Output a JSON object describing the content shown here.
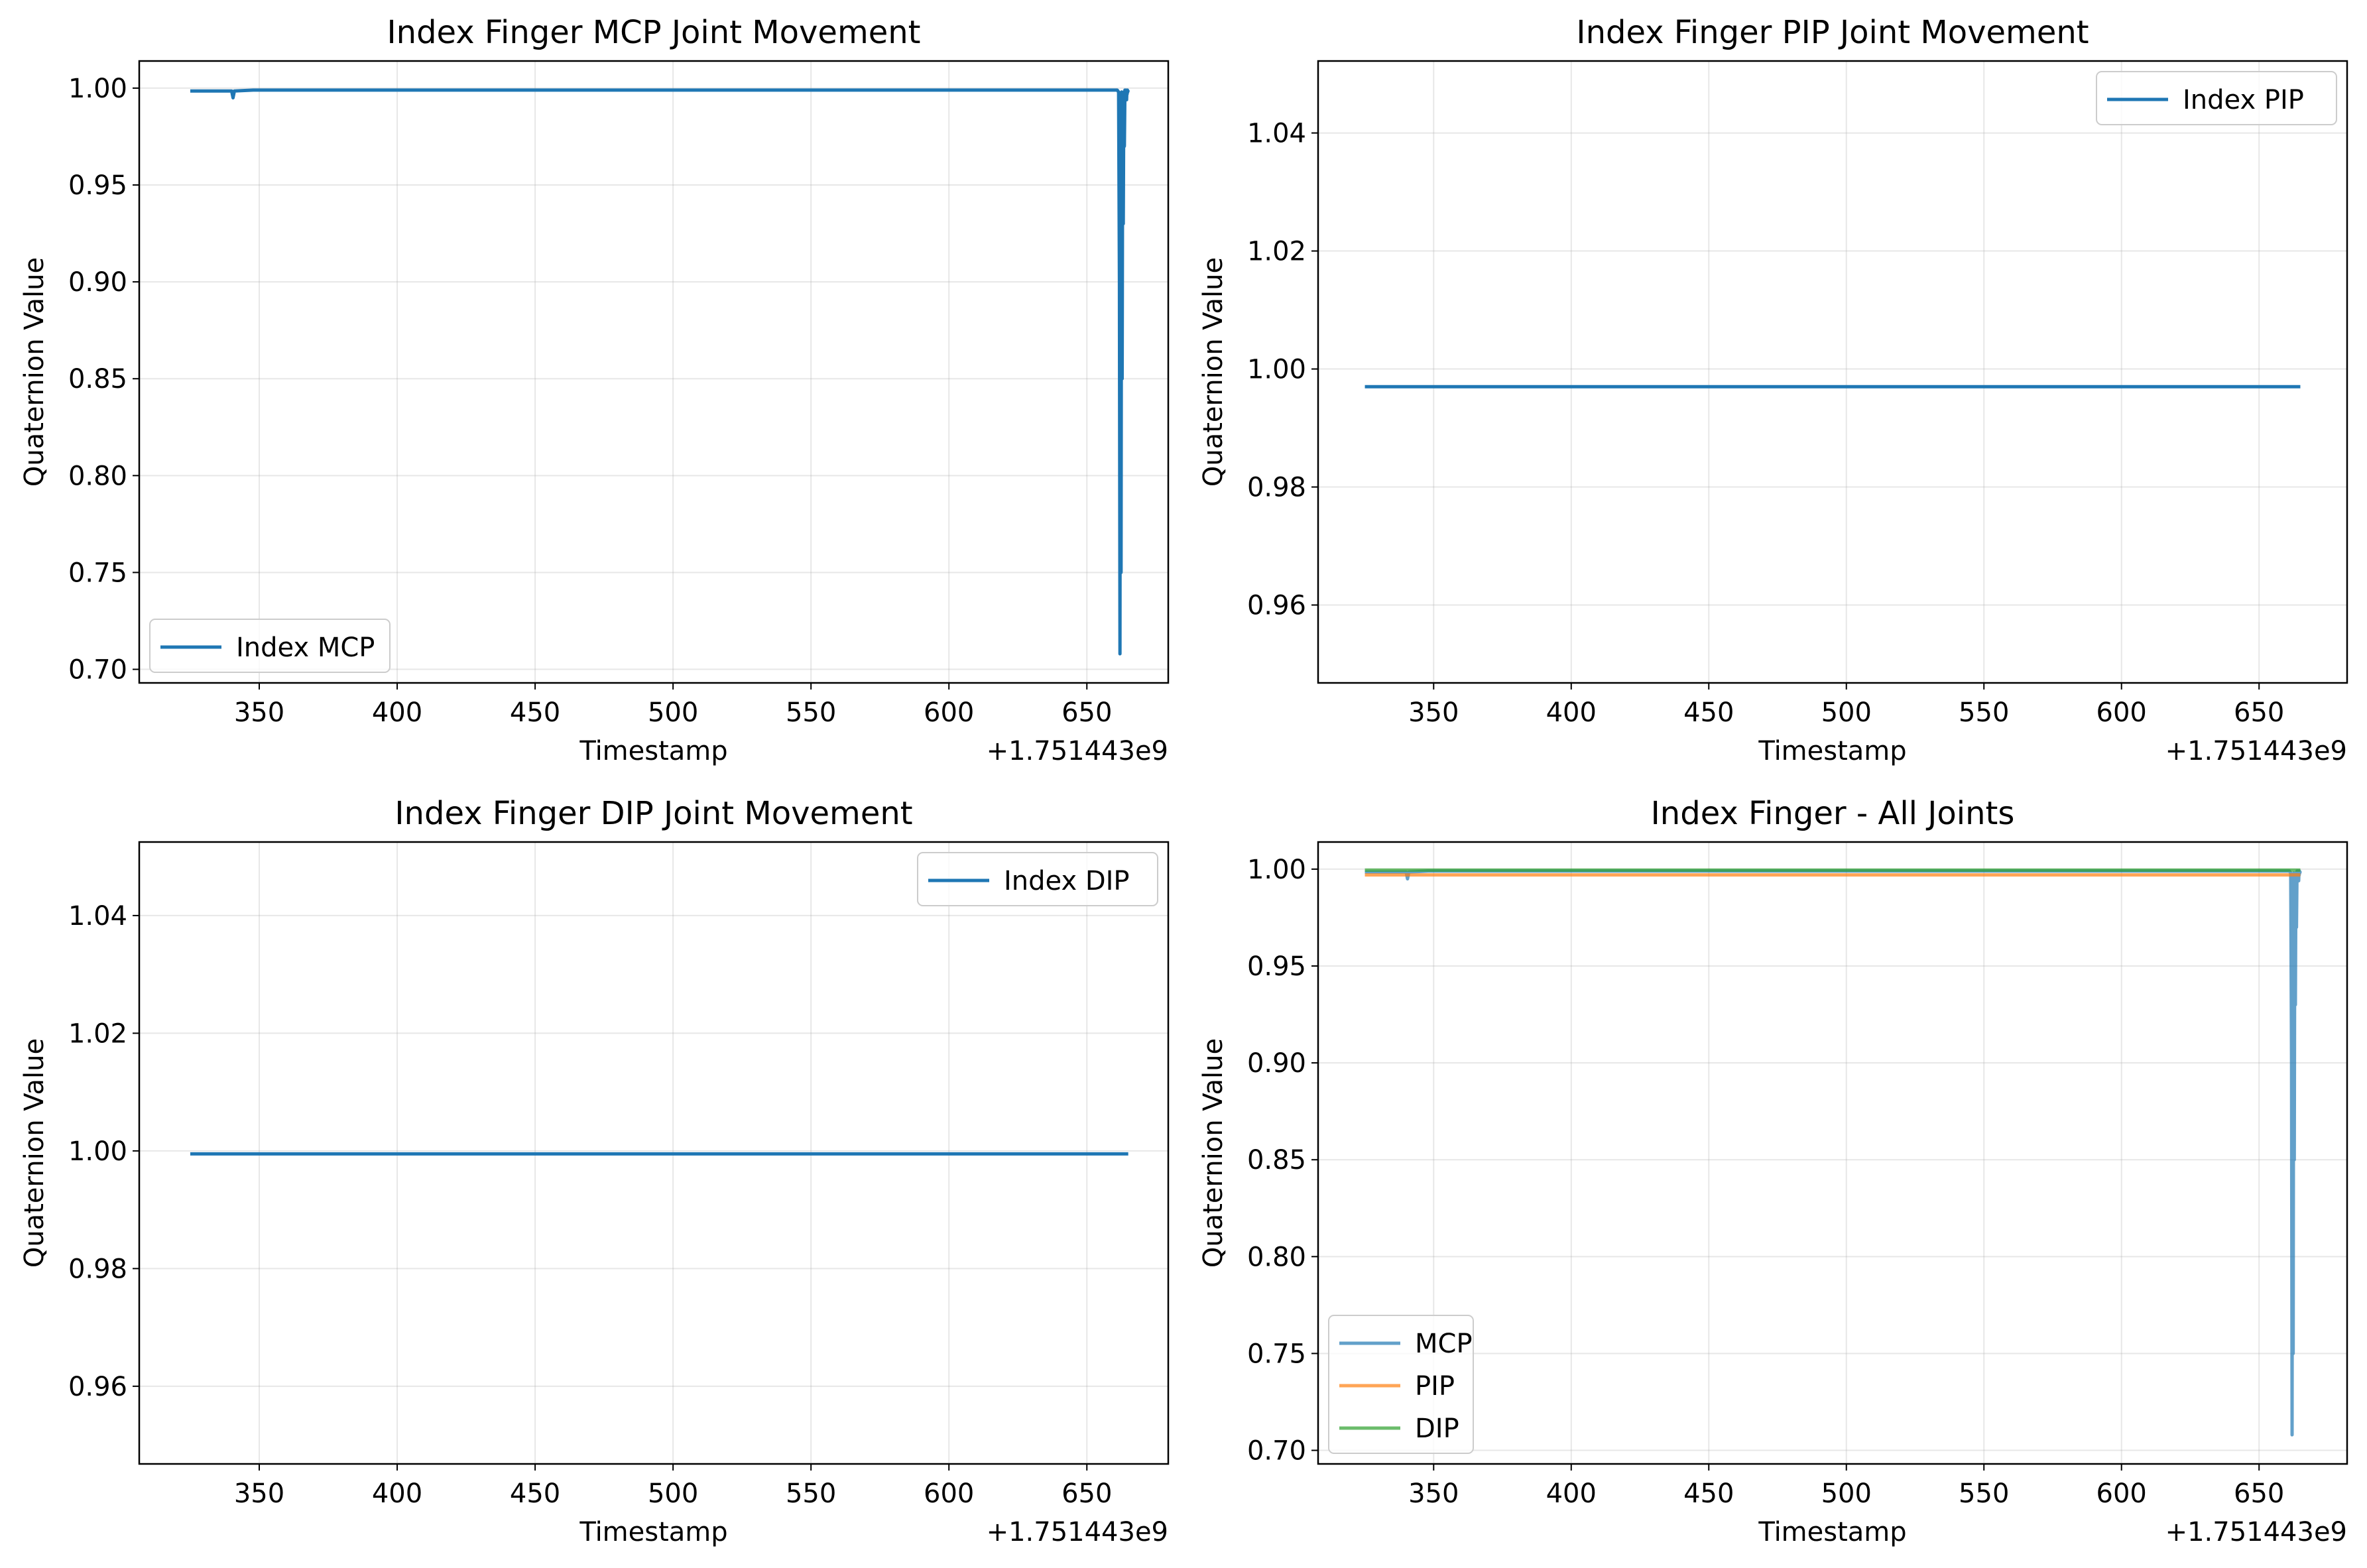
{
  "figure": {
    "background": "#ffffff"
  },
  "chart_data": [
    {
      "type": "line",
      "title": "Index Finger MCP Joint Movement",
      "xlabel": "Timestamp",
      "ylabel": "Quaternion Value",
      "x_offset_label": "+1.751443e9",
      "xlim": [
        306.5,
        679.5
      ],
      "ylim": [
        0.693,
        1.014
      ],
      "xticks": [
        350,
        400,
        450,
        500,
        550,
        600,
        650
      ],
      "xtick_labels": [
        "350",
        "400",
        "450",
        "500",
        "550",
        "600",
        "650"
      ],
      "yticks": [
        0.7,
        0.75,
        0.8,
        0.85,
        0.9,
        0.95,
        1.0
      ],
      "ytick_labels": [
        "0.70",
        "0.75",
        "0.80",
        "0.85",
        "0.90",
        "0.95",
        "1.00"
      ],
      "grid": true,
      "legend": {
        "position": "lower-left",
        "entries": [
          "Index MCP"
        ]
      },
      "series": [
        {
          "name": "Index MCP",
          "color": "#1f77b4",
          "opacity": 1,
          "width": 5,
          "x": [
            325,
            340,
            340.5,
            341,
            348,
            355,
            400,
            500,
            600,
            660,
            661,
            661.5,
            661.8,
            662,
            662.2,
            662.4,
            662.6,
            662.8,
            663,
            663.2,
            663.4,
            663.6,
            663.8,
            664,
            664.2,
            664.4,
            664.5,
            664.6,
            664.7,
            664.8,
            665
          ],
          "y": [
            0.9985,
            0.9985,
            0.995,
            0.9985,
            0.999,
            0.999,
            0.999,
            0.999,
            0.999,
            0.999,
            0.999,
            0.998,
            0.9,
            0.708,
            0.995,
            0.75,
            0.998,
            0.85,
            0.997,
            0.93,
            0.998,
            0.97,
            0.999,
            0.996,
            0.999,
            0.994,
            0.998,
            0.997,
            0.999,
            0.998,
            0.999
          ]
        }
      ]
    },
    {
      "type": "line",
      "title": "Index Finger PIP Joint Movement",
      "xlabel": "Timestamp",
      "ylabel": "Quaternion Value",
      "x_offset_label": "+1.751443e9",
      "xlim": [
        308,
        682
      ],
      "ylim": [
        0.9468,
        1.0522
      ],
      "xticks": [
        350,
        400,
        450,
        500,
        550,
        600,
        650
      ],
      "xtick_labels": [
        "350",
        "400",
        "450",
        "500",
        "550",
        "600",
        "650"
      ],
      "yticks": [
        0.96,
        0.98,
        1.0,
        1.02,
        1.04
      ],
      "ytick_labels": [
        "0.96",
        "0.98",
        "1.00",
        "1.02",
        "1.04"
      ],
      "grid": true,
      "legend": {
        "position": "upper-right",
        "entries": [
          "Index PIP"
        ]
      },
      "series": [
        {
          "name": "Index PIP",
          "color": "#1f77b4",
          "opacity": 1,
          "width": 5,
          "x": [
            325,
            665
          ],
          "y": [
            0.997,
            0.997
          ]
        }
      ]
    },
    {
      "type": "line",
      "title": "Index Finger DIP Joint Movement",
      "xlabel": "Timestamp",
      "ylabel": "Quaternion Value",
      "x_offset_label": "+1.751443e9",
      "xlim": [
        306.5,
        679.5
      ],
      "ylim": [
        0.9468,
        1.0525
      ],
      "xticks": [
        350,
        400,
        450,
        500,
        550,
        600,
        650
      ],
      "xtick_labels": [
        "350",
        "400",
        "450",
        "500",
        "550",
        "600",
        "650"
      ],
      "yticks": [
        0.96,
        0.98,
        1.0,
        1.02,
        1.04
      ],
      "ytick_labels": [
        "0.96",
        "0.98",
        "1.00",
        "1.02",
        "1.04"
      ],
      "grid": true,
      "legend": {
        "position": "upper-right",
        "entries": [
          "Index DIP"
        ]
      },
      "series": [
        {
          "name": "Index DIP",
          "color": "#1f77b4",
          "opacity": 1,
          "width": 5,
          "x": [
            325,
            665
          ],
          "y": [
            0.9995,
            0.9995
          ]
        }
      ]
    },
    {
      "type": "line",
      "title": "Index Finger - All Joints",
      "xlabel": "Timestamp",
      "ylabel": "Quaternion Value",
      "x_offset_label": "+1.751443e9",
      "xlim": [
        308,
        682
      ],
      "ylim": [
        0.693,
        1.014
      ],
      "xticks": [
        350,
        400,
        450,
        500,
        550,
        600,
        650
      ],
      "xtick_labels": [
        "350",
        "400",
        "450",
        "500",
        "550",
        "600",
        "650"
      ],
      "yticks": [
        0.7,
        0.75,
        0.8,
        0.85,
        0.9,
        0.95,
        1.0
      ],
      "ytick_labels": [
        "0.70",
        "0.75",
        "0.80",
        "0.85",
        "0.90",
        "0.95",
        "1.00"
      ],
      "grid": true,
      "legend": {
        "position": "lower-left",
        "entries": [
          "MCP",
          "PIP",
          "DIP"
        ]
      },
      "series": [
        {
          "name": "MCP",
          "color": "#1f77b4",
          "opacity": 0.7,
          "width": 5,
          "x": [
            325,
            340,
            340.5,
            341,
            348,
            355,
            400,
            500,
            600,
            660,
            661,
            661.5,
            661.8,
            662,
            662.2,
            662.4,
            662.6,
            662.8,
            663,
            663.2,
            663.4,
            663.6,
            663.8,
            664,
            664.2,
            664.4,
            664.5,
            664.6,
            664.7,
            664.8,
            665
          ],
          "y": [
            0.9985,
            0.9985,
            0.995,
            0.9985,
            0.999,
            0.999,
            0.999,
            0.999,
            0.999,
            0.999,
            0.999,
            0.998,
            0.9,
            0.708,
            0.995,
            0.75,
            0.998,
            0.85,
            0.997,
            0.93,
            0.998,
            0.97,
            0.999,
            0.996,
            0.999,
            0.994,
            0.998,
            0.997,
            0.999,
            0.998,
            0.999
          ]
        },
        {
          "name": "PIP",
          "color": "#ff7f0e",
          "opacity": 0.7,
          "width": 5,
          "x": [
            325,
            665
          ],
          "y": [
            0.997,
            0.997
          ]
        },
        {
          "name": "DIP",
          "color": "#2ca02c",
          "opacity": 0.7,
          "width": 5,
          "x": [
            325,
            665
          ],
          "y": [
            0.9995,
            0.9995
          ]
        }
      ]
    }
  ]
}
